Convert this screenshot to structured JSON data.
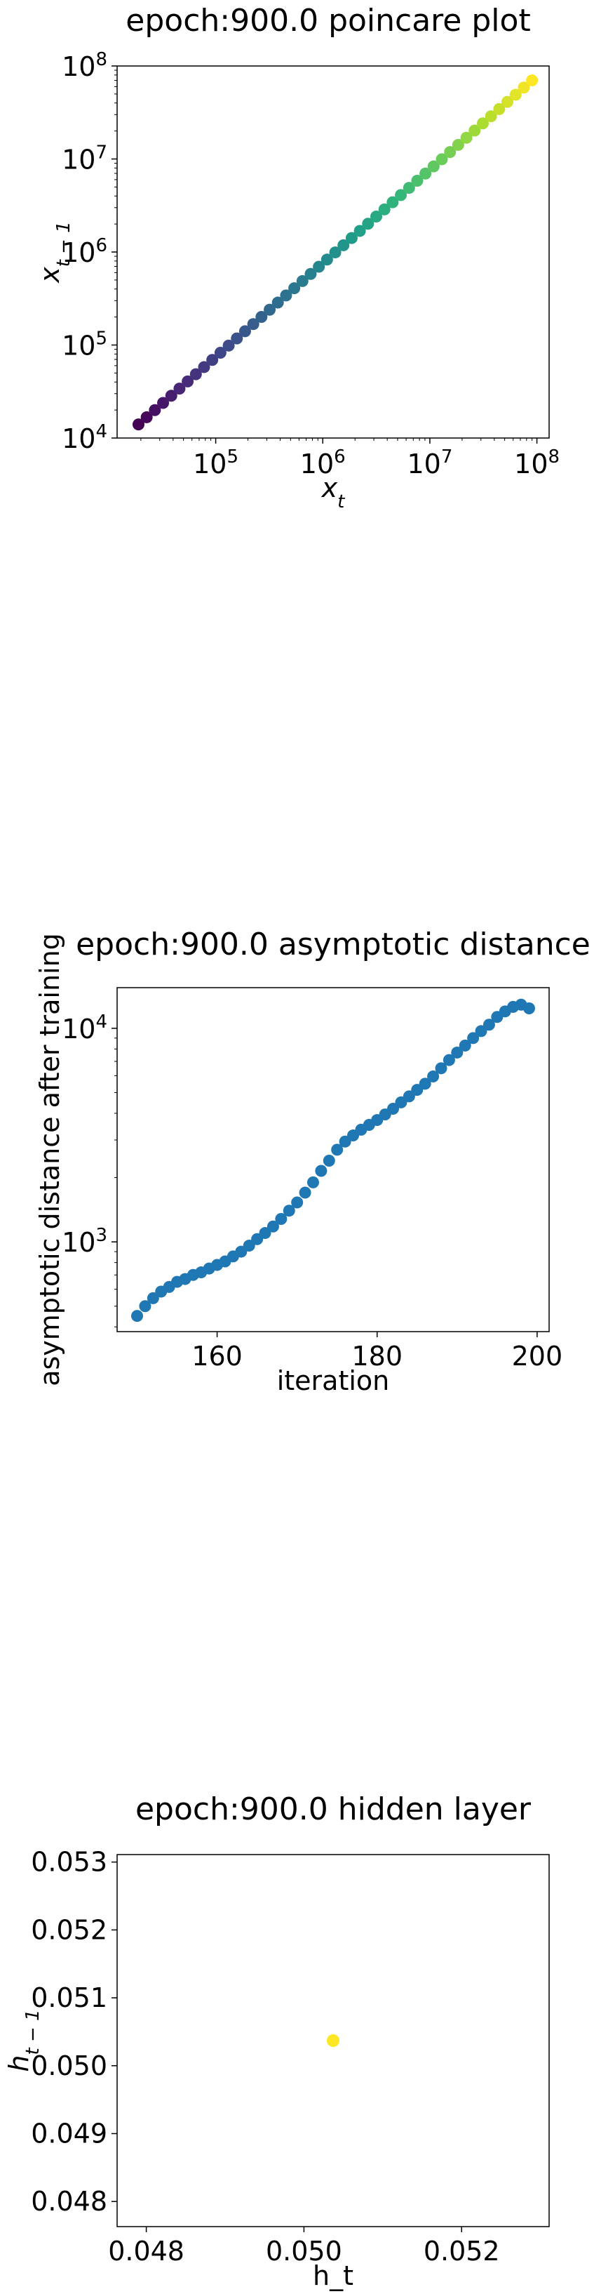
{
  "chart_data": [
    {
      "type": "scatter",
      "title": "epoch:900.0 poincare plot",
      "xlabel_base": "x",
      "xlabel_sub": "t",
      "ylabel_base": "x",
      "ylabel_sub": "t − 1",
      "scale": "log",
      "xlim": [
        12000,
        130000000
      ],
      "ylim": [
        10000,
        100000000
      ],
      "xticks": [
        {
          "v": 100000,
          "base": "10",
          "exp": "5"
        },
        {
          "v": 1000000,
          "base": "10",
          "exp": "6"
        },
        {
          "v": 10000000,
          "base": "10",
          "exp": "7"
        },
        {
          "v": 100000000,
          "base": "10",
          "exp": "8"
        }
      ],
      "yticks": [
        {
          "v": 10000,
          "base": "10",
          "exp": "4"
        },
        {
          "v": 100000,
          "base": "10",
          "exp": "5"
        },
        {
          "v": 1000000,
          "base": "10",
          "exp": "6"
        },
        {
          "v": 10000000,
          "base": "10",
          "exp": "7"
        },
        {
          "v": 100000000,
          "base": "10",
          "exp": "8"
        }
      ],
      "colormap": "viridis",
      "n_points": 49,
      "x_first": 19000,
      "x_last": 90000000,
      "y_first": 14000,
      "y_last": 70000000
    },
    {
      "type": "scatter",
      "title": "epoch:900.0 asymptotic distance",
      "xlabel": "iteration",
      "ylabel": "asymptotic distance after training",
      "yscale": "log",
      "xlim": [
        147.5,
        201.5
      ],
      "ylim": [
        380,
        15500
      ],
      "color": "#1f77b4",
      "xticks": [
        {
          "v": 160,
          "label": "160"
        },
        {
          "v": 180,
          "label": "180"
        },
        {
          "v": 200,
          "label": "200"
        }
      ],
      "yticks": [
        {
          "v": 1000,
          "base": "10",
          "exp": "3"
        },
        {
          "v": 10000,
          "base": "10",
          "exp": "4"
        }
      ],
      "x": [
        150,
        151,
        152,
        153,
        154,
        155,
        156,
        157,
        158,
        159,
        160,
        161,
        162,
        163,
        164,
        165,
        166,
        167,
        168,
        169,
        170,
        171,
        172,
        173,
        174,
        175,
        176,
        177,
        178,
        179,
        180,
        181,
        182,
        183,
        184,
        185,
        186,
        187,
        188,
        189,
        190,
        191,
        192,
        193,
        194,
        195,
        196,
        197,
        198,
        199
      ],
      "y": [
        450,
        500,
        545,
        585,
        615,
        650,
        670,
        700,
        720,
        750,
        780,
        810,
        855,
        900,
        960,
        1030,
        1100,
        1180,
        1280,
        1400,
        1530,
        1700,
        1900,
        2150,
        2400,
        2700,
        2950,
        3150,
        3350,
        3530,
        3720,
        3950,
        4200,
        4500,
        4800,
        5150,
        5500,
        5950,
        6500,
        7100,
        7700,
        8300,
        9000,
        9700,
        10400,
        11300,
        12000,
        12600,
        12900,
        12400
      ]
    },
    {
      "type": "scatter",
      "title": "epoch:900.0 hidden layer",
      "xlabel": "h_t",
      "ylabel_base": "h",
      "ylabel_sub": "t − 1",
      "xlim": [
        0.04763,
        0.05311
      ],
      "ylim": [
        0.04763,
        0.05311
      ],
      "xticks": [
        {
          "v": 0.048,
          "label": "0.048"
        },
        {
          "v": 0.05,
          "label": "0.050"
        },
        {
          "v": 0.052,
          "label": "0.052"
        }
      ],
      "yticks": [
        {
          "v": 0.048,
          "label": "0.048"
        },
        {
          "v": 0.049,
          "label": "0.049"
        },
        {
          "v": 0.05,
          "label": "0.050"
        },
        {
          "v": 0.051,
          "label": "0.051"
        },
        {
          "v": 0.052,
          "label": "0.052"
        },
        {
          "v": 0.053,
          "label": "0.053"
        }
      ],
      "x": [
        0.05037
      ],
      "y": [
        0.05037
      ],
      "color": "#fde725"
    }
  ]
}
